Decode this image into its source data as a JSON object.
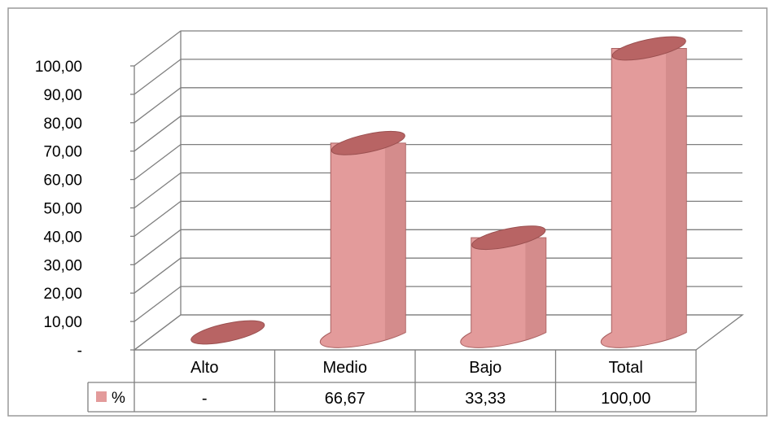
{
  "colors": {
    "bar_fill": "#e39b9b",
    "bar_top": "#b86464",
    "grid": "#7f7f7f",
    "border": "#9a9a9a"
  },
  "chart_data": {
    "type": "bar",
    "style": "3d-cylinder",
    "categories": [
      "Alto",
      "Medio",
      "Bajo",
      "Total"
    ],
    "series": [
      {
        "name": "%",
        "values": [
          0,
          66.67,
          33.33,
          100.0
        ]
      }
    ],
    "data_table": {
      "legend_label": "%",
      "cells": [
        "-",
        "66,67",
        "33,33",
        "100,00"
      ]
    },
    "y_ticks": [
      "-",
      "10,00",
      "20,00",
      "30,00",
      "40,00",
      "50,00",
      "60,00",
      "70,00",
      "80,00",
      "90,00",
      "100,00"
    ],
    "ylim": [
      0,
      100
    ],
    "grid": true,
    "legend": "data-table"
  }
}
